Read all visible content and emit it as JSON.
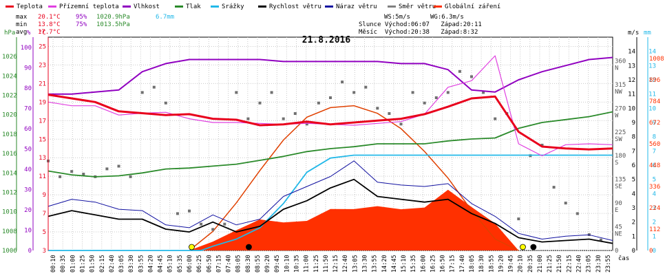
{
  "legend": [
    {
      "label": "Teplota",
      "color": "#e8001c"
    },
    {
      "label": "Přízemní teplota",
      "color": "#e040e0"
    },
    {
      "label": "Vlhkost",
      "color": "#9000c0"
    },
    {
      "label": "Tlak",
      "color": "#2a8a2a"
    },
    {
      "label": "Srážky",
      "color": "#22b8e8"
    },
    {
      "label": "Rychlost větru",
      "color": "#000000"
    },
    {
      "label": "Náraz větru",
      "color": "#1010a0"
    },
    {
      "label": "Směr větru",
      "color": "#808080"
    },
    {
      "label": "Globální záření",
      "color": "#ff3000"
    }
  ],
  "stats": {
    "max": {
      "label": "max",
      "temp": "20.1°C",
      "hum": "95%",
      "press": "1020.9hPa",
      "rain": "6.7mm"
    },
    "min": {
      "label": "min",
      "temp": "13.8°C",
      "hum": "75%",
      "press": "1013.5hPa"
    },
    "avg": {
      "label": "avg",
      "temp": "17.7°C"
    }
  },
  "wind_info": {
    "ws": "WS:5m/s",
    "wg": "WG:6.3m/s",
    "sun": "Slunce Východ:06:07   Západ:20:11",
    "moon": "Měsíc  Východ:20:38   Západ:8:32"
  },
  "chart_data": {
    "type": "line",
    "title": "21.8.2016",
    "xlabel": "čas",
    "x_ticks": [
      "00:10",
      "00:35",
      "01:00",
      "01:25",
      "01:50",
      "02:15",
      "02:40",
      "03:05",
      "03:30",
      "03:55",
      "04:20",
      "04:45",
      "05:10",
      "05:35",
      "06:00",
      "06:25",
      "06:50",
      "07:15",
      "07:40",
      "08:05",
      "08:30",
      "08:55",
      "09:20",
      "09:45",
      "10:10",
      "10:35",
      "11:00",
      "11:25",
      "11:50",
      "12:15",
      "12:40",
      "13:05",
      "13:30",
      "13:55",
      "14:20",
      "14:45",
      "15:10",
      "15:35",
      "16:00",
      "16:25",
      "16:50",
      "17:15",
      "17:40",
      "18:05",
      "18:30",
      "18:55",
      "19:20",
      "19:45",
      "20:10",
      "20:35",
      "21:00",
      "21:25",
      "21:50",
      "22:15",
      "22:40",
      "23:05",
      "23:30",
      "23:55"
    ],
    "axes": {
      "pressure": {
        "unit": "hPa",
        "range": [
          1006,
          1028
        ],
        "ticks": [
          1006,
          1008,
          1010,
          1012,
          1014,
          1016,
          1018,
          1020,
          1022,
          1024,
          1026
        ]
      },
      "humidity": {
        "unit": "%",
        "range": [
          0,
          105
        ],
        "ticks": [
          0,
          5,
          10,
          15,
          20,
          25,
          30,
          35,
          40,
          45,
          50,
          55,
          60,
          65,
          70,
          75,
          80,
          85,
          90,
          95,
          100
        ]
      },
      "temperature": {
        "unit": "°C",
        "range": [
          3,
          26
        ],
        "ticks": [
          3,
          5,
          7,
          9,
          11,
          13,
          15,
          17,
          19,
          21,
          23,
          25
        ]
      },
      "wind_dir": {
        "range": [
          0,
          405
        ],
        "ticks": [
          {
            "v": 0,
            "label": "0"
          },
          {
            "v": 45,
            "label": "45 NE"
          },
          {
            "v": 90,
            "label": "90 E"
          },
          {
            "v": 135,
            "label": "135 SE"
          },
          {
            "v": 180,
            "label": "180 S"
          },
          {
            "v": 225,
            "label": "225 SW"
          },
          {
            "v": 270,
            "label": "270 W"
          },
          {
            "v": 315,
            "label": "315 NW"
          },
          {
            "v": 360,
            "label": "360 N"
          }
        ]
      },
      "wind_speed": {
        "unit": "m/s",
        "range": [
          0,
          15
        ],
        "ticks": [
          0,
          1,
          2,
          3,
          4,
          5,
          6,
          7,
          8,
          9,
          10,
          11,
          12,
          13,
          14
        ]
      },
      "rain": {
        "unit": "mm",
        "range": [
          0,
          15
        ],
        "ticks": [
          0,
          1,
          2,
          3,
          4,
          5,
          6,
          7,
          8,
          9,
          10,
          11,
          12,
          13,
          14
        ]
      },
      "radiation": {
        "range": [
          0,
          1120
        ],
        "ticks": [
          0,
          112,
          224,
          336,
          448,
          560,
          672,
          784,
          896,
          1008
        ]
      }
    },
    "series": [
      {
        "name": "Teplota",
        "axis": "temperature",
        "x": [
          0,
          1,
          2,
          3,
          4,
          5,
          6,
          7,
          8,
          9,
          10,
          11,
          12,
          13,
          14,
          15,
          16,
          17,
          18,
          19,
          20,
          21,
          22,
          23,
          24
        ],
        "values": [
          19.8,
          19.4,
          19.0,
          18.0,
          17.8,
          17.6,
          17.7,
          17.2,
          17.1,
          16.5,
          16.6,
          16.9,
          16.6,
          16.8,
          17.0,
          17.2,
          17.7,
          18.5,
          19.4,
          19.6,
          15.8,
          14.2,
          14.0,
          13.9,
          14.0
        ]
      },
      {
        "name": "Přízemní teplota",
        "axis": "temperature",
        "x": [
          0,
          1,
          2,
          3,
          4,
          5,
          6,
          7,
          8,
          9,
          10,
          11,
          12,
          13,
          14,
          15,
          16,
          17,
          18,
          19,
          20,
          21,
          22,
          23,
          24
        ],
        "values": [
          19.0,
          18.6,
          18.6,
          17.6,
          17.8,
          17.9,
          17.2,
          16.8,
          16.8,
          16.7,
          16.6,
          16.7,
          16.6,
          16.5,
          16.7,
          16.9,
          17.7,
          20.6,
          21.3,
          24.0,
          14.5,
          13.2,
          14.4,
          14.5,
          14.4
        ]
      },
      {
        "name": "Vlhkost",
        "axis": "humidity",
        "x": [
          0,
          1,
          2,
          3,
          4,
          5,
          6,
          7,
          8,
          9,
          10,
          11,
          12,
          13,
          14,
          15,
          16,
          17,
          18,
          19,
          20,
          21,
          22,
          23,
          24
        ],
        "values": [
          77,
          77,
          78,
          79,
          88,
          92,
          94,
          94,
          94,
          94,
          93,
          93,
          93,
          93,
          93,
          92,
          92,
          89,
          79,
          78,
          84,
          88,
          91,
          94,
          95
        ]
      },
      {
        "name": "Tlak",
        "axis": "pressure",
        "x": [
          0,
          1,
          2,
          3,
          4,
          5,
          6,
          7,
          8,
          9,
          10,
          11,
          12,
          13,
          14,
          15,
          16,
          17,
          18,
          19,
          20,
          21,
          22,
          23,
          24
        ],
        "values": [
          1014.2,
          1013.8,
          1013.6,
          1013.7,
          1014.0,
          1014.4,
          1014.5,
          1014.7,
          1014.9,
          1015.3,
          1015.7,
          1016.2,
          1016.5,
          1016.7,
          1017.0,
          1017.0,
          1017.0,
          1017.3,
          1017.5,
          1017.6,
          1018.6,
          1019.2,
          1019.5,
          1019.8,
          1020.3
        ]
      },
      {
        "name": "Srážky",
        "axis": "rain",
        "x": [
          0,
          6.5,
          7,
          8,
          9,
          10,
          11,
          12,
          13,
          24
        ],
        "values": [
          0,
          0,
          0.3,
          0.8,
          1.6,
          3.3,
          5.5,
          6.5,
          6.7,
          6.7
        ]
      },
      {
        "name": "Rychlost větru",
        "axis": "wind_speed",
        "x": [
          0,
          1,
          2,
          3,
          4,
          5,
          6,
          7,
          8,
          9,
          10,
          11,
          12,
          13,
          14,
          15,
          16,
          17,
          18,
          19,
          20,
          21,
          22,
          23,
          24
        ],
        "values": [
          2.4,
          2.8,
          2.5,
          2.2,
          2.2,
          1.5,
          1.3,
          2.0,
          1.3,
          1.7,
          2.9,
          3.5,
          4.4,
          5.0,
          3.8,
          3.6,
          3.4,
          3.6,
          2.6,
          1.9,
          0.9,
          0.6,
          0.7,
          0.8,
          0.5
        ]
      },
      {
        "name": "Náraz větru",
        "axis": "wind_speed",
        "x": [
          0,
          1,
          2,
          3,
          4,
          5,
          6,
          7,
          8,
          9,
          10,
          11,
          12,
          13,
          14,
          15,
          16,
          17,
          18,
          19,
          20,
          21,
          22,
          23,
          24
        ],
        "values": [
          3.1,
          3.6,
          3.4,
          2.9,
          2.8,
          1.8,
          1.6,
          2.5,
          1.8,
          2.2,
          3.8,
          4.5,
          5.2,
          6.3,
          4.8,
          4.6,
          4.5,
          4.7,
          3.3,
          2.4,
          1.2,
          0.8,
          1.0,
          1.1,
          0.7
        ]
      },
      {
        "name": "Globální záření",
        "axis": "radiation",
        "x": [
          0,
          6,
          7,
          8,
          9,
          10,
          11,
          12,
          13,
          14,
          15,
          16,
          17,
          18,
          19,
          20,
          24
        ],
        "values": [
          0,
          0,
          60,
          90,
          140,
          150,
          180,
          230,
          200,
          210,
          220,
          250,
          330,
          210,
          120,
          0,
          0
        ]
      },
      {
        "name": "Globální záření max",
        "axis": "radiation",
        "x": [
          6,
          7,
          8,
          9,
          10,
          11,
          12,
          13,
          14,
          15,
          16,
          17,
          18,
          19,
          20
        ],
        "values": [
          0,
          100,
          250,
          420,
          580,
          700,
          750,
          760,
          720,
          640,
          520,
          380,
          210,
          60,
          0
        ]
      }
    ],
    "wind_direction_points": {
      "axis": "wind_dir",
      "x": [
        0,
        0.5,
        1,
        1.5,
        2,
        2.5,
        3,
        3.5,
        4,
        4.5,
        5,
        5.5,
        6,
        6.5,
        7,
        7.5,
        8,
        8.5,
        9,
        9.5,
        10,
        10.5,
        11,
        11.5,
        12,
        12.5,
        13,
        13.5,
        14,
        14.5,
        15,
        15.5,
        16,
        16.5,
        17,
        17.5,
        18,
        18.5,
        19,
        19.5,
        20,
        20.5,
        21,
        21.5,
        22,
        22.5,
        23,
        23.5
      ],
      "values": [
        170,
        140,
        150,
        145,
        140,
        155,
        160,
        140,
        300,
        310,
        280,
        70,
        75,
        50,
        40,
        50,
        300,
        250,
        280,
        300,
        250,
        260,
        240,
        280,
        290,
        320,
        300,
        310,
        270,
        260,
        240,
        300,
        280,
        290,
        300,
        340,
        330,
        300,
        250,
        260,
        60,
        180,
        200,
        120,
        90,
        70,
        30,
        20
      ]
    },
    "markers": [
      {
        "label": "sunrise",
        "x": 6.1,
        "color": "#ffff00"
      },
      {
        "label": "moonset",
        "x": 8.53,
        "color": "#000000"
      },
      {
        "label": "sunset",
        "x": 20.18,
        "color": "#ffff00"
      },
      {
        "label": "moonrise",
        "x": 20.63,
        "color": "#000000"
      }
    ]
  }
}
